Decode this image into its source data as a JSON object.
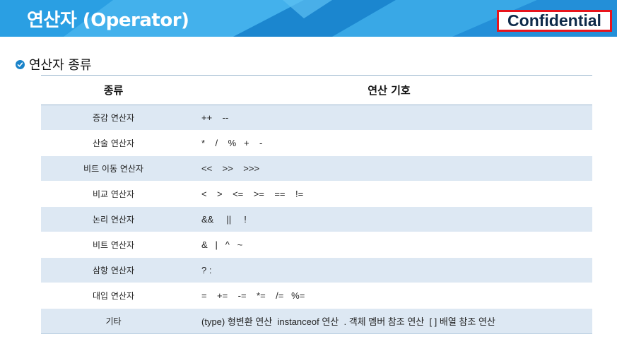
{
  "header": {
    "title": "연산자 (Operator)",
    "badge": "Confidential",
    "background_color": "#1e93da",
    "badge_border_color": "#e8141c"
  },
  "section": {
    "title": "연산자 종류",
    "bullet_icon": "check-circle-icon",
    "bullet_color": "#1a83c9"
  },
  "table": {
    "columns": [
      "종류",
      "연산 기호"
    ],
    "rows": [
      {
        "type": "증감 연산자",
        "symbols": "++    --"
      },
      {
        "type": "산술 연산자",
        "symbols": "*    /    %   +    -"
      },
      {
        "type": "비트 이동 연산자",
        "symbols": "<<    >>    >>>"
      },
      {
        "type": "비교 연산자",
        "symbols": "<    >    <=    >=    ==    !="
      },
      {
        "type": "논리 연산자",
        "symbols": "&&     ||     !"
      },
      {
        "type": "비트 연산자",
        "symbols": "&   |   ^   ~"
      },
      {
        "type": "삼항 연산자",
        "symbols": "? :"
      },
      {
        "type": "대입 연산자",
        "symbols": "=    +=    -=    *=    /=   %="
      },
      {
        "type": "기타",
        "symbols": "(type) 형변환 연산  instanceof 연산  . 객체 멤버 참조 연산  [ ] 배열 참조 연산"
      }
    ],
    "row_stripe_color": "#dde8f3"
  }
}
